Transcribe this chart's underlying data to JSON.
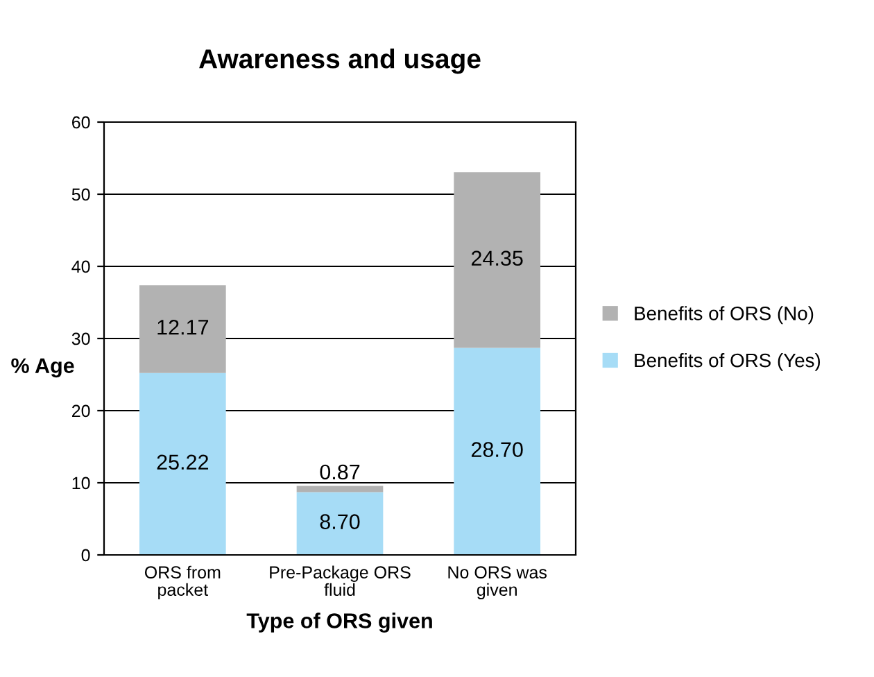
{
  "chart_data": {
    "type": "bar",
    "title": "Awareness and usage",
    "xlabel": "Type of ORS given",
    "ylabel": "% Age",
    "categories": [
      "ORS from packet",
      "Pre-Package ORS fluid",
      "No ORS was given"
    ],
    "stacked": true,
    "data_labels": true,
    "grid": "y",
    "legend": "right",
    "ylim": [
      0,
      60
    ],
    "yticks": [
      0,
      10,
      20,
      30,
      40,
      50,
      60
    ],
    "series": [
      {
        "name": "Benefits of ORS (Yes)",
        "color": "#a6dcf6",
        "values": [
          25.22,
          8.7,
          28.7
        ],
        "value_labels": [
          "25.22",
          "8.70",
          "28.70"
        ]
      },
      {
        "name": "Benefits of ORS (No)",
        "color": "#b2b2b2",
        "values": [
          12.17,
          0.87,
          24.35
        ],
        "value_labels": [
          "12.17",
          "0.87",
          "24.35"
        ]
      }
    ]
  }
}
